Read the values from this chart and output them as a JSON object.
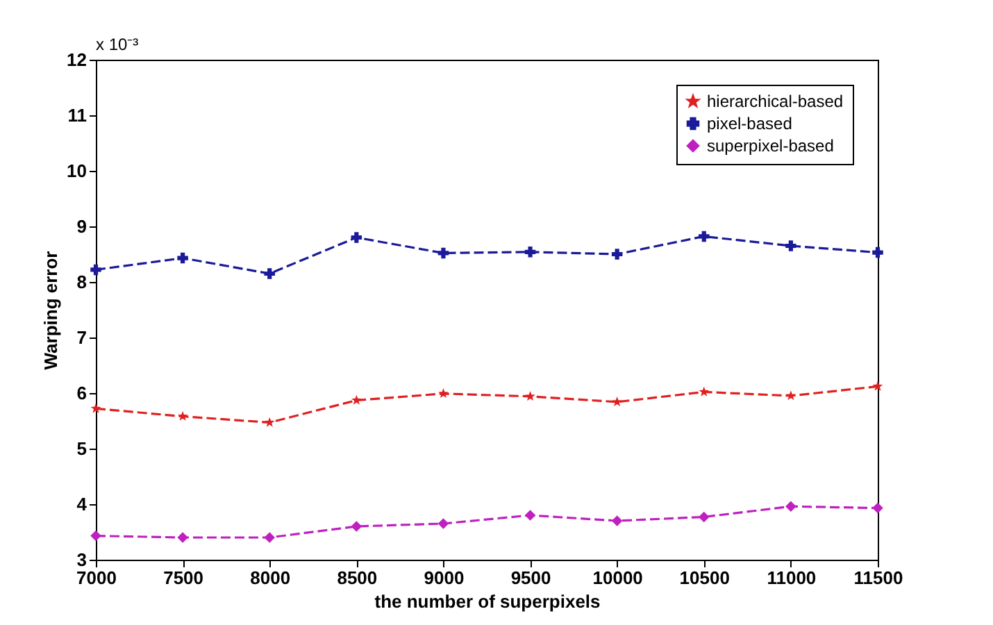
{
  "chart_data": {
    "type": "line",
    "xlabel": "the number of superpixels",
    "ylabel": "Warping error",
    "annotations": [
      "x 10⁻³"
    ],
    "x": [
      7000,
      7500,
      8000,
      8500,
      9000,
      9500,
      10000,
      10500,
      11000,
      11500
    ],
    "series": [
      {
        "name": "hierarchical-based",
        "color": "#e02020",
        "marker": "star",
        "values": [
          5.72,
          5.58,
          5.47,
          5.87,
          5.99,
          5.94,
          5.84,
          6.02,
          5.95,
          6.12
        ]
      },
      {
        "name": "pixel-based",
        "color": "#1a1a9a",
        "marker": "cross",
        "values": [
          8.22,
          8.43,
          8.15,
          8.8,
          8.52,
          8.54,
          8.5,
          8.82,
          8.65,
          8.53
        ]
      },
      {
        "name": "superpixel-based",
        "color": "#c020c0",
        "marker": "diamond",
        "values": [
          3.43,
          3.4,
          3.4,
          3.6,
          3.65,
          3.8,
          3.7,
          3.77,
          3.96,
          3.93
        ]
      }
    ],
    "xlim": [
      7000,
      11500
    ],
    "xticks": [
      7000,
      7500,
      8000,
      8500,
      9000,
      9500,
      10000,
      10500,
      11000,
      11500
    ],
    "ylim": [
      3,
      12
    ],
    "yticks": [
      3,
      4,
      5,
      6,
      7,
      8,
      9,
      10,
      11,
      12
    ],
    "grid": false,
    "legend": "top right",
    "line_style": "dashed"
  }
}
